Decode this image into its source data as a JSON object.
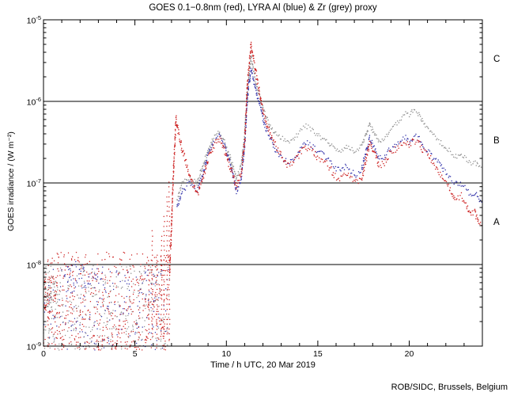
{
  "credit": "ROB/SIDC, Brussels, Belgium",
  "chart_data": {
    "type": "scatter",
    "title": "GOES 0.1−0.8nm (red), LYRA Al (blue) & Zr (grey) proxy",
    "xlabel": "Time / h UTC, 20 Mar 2019",
    "ylabel": "GOES irradiance / (W m⁻²)",
    "x_range_hours": [
      0,
      24
    ],
    "y_log10_range": [
      -9,
      -5
    ],
    "x_ticks": [
      0,
      5,
      10,
      15,
      20
    ],
    "y_tick_exponents": [
      -5,
      -6,
      -7,
      -8,
      -9
    ],
    "threshold_lines_log10": [
      -6,
      -7,
      -8
    ],
    "class_bands": [
      {
        "label": "C",
        "log10_center": -5.5
      },
      {
        "label": "B",
        "log10_center": -6.5
      },
      {
        "label": "A",
        "log10_center": -7.5
      }
    ],
    "colors": {
      "red": "#cc2020",
      "blue": "#3333aa",
      "grey": "#8f8f8f",
      "axis": "#000000",
      "background": "#ffffff"
    },
    "series": [
      {
        "name": "GOES 0.1-0.8nm",
        "color_key": "red",
        "jitter_log10": 0.045,
        "keypoints": [
          [
            6.9,
            -8.1
          ],
          [
            7.0,
            -7.55
          ],
          [
            7.1,
            -6.9
          ],
          [
            7.25,
            -6.2
          ],
          [
            7.35,
            -6.35
          ],
          [
            7.6,
            -6.6
          ],
          [
            8.0,
            -6.9
          ],
          [
            8.4,
            -7.15
          ],
          [
            8.7,
            -6.95
          ],
          [
            9.0,
            -6.7
          ],
          [
            9.3,
            -6.55
          ],
          [
            9.6,
            -6.45
          ],
          [
            9.9,
            -6.6
          ],
          [
            10.2,
            -6.8
          ],
          [
            10.55,
            -7.05
          ],
          [
            10.8,
            -6.9
          ],
          [
            11.0,
            -6.5
          ],
          [
            11.15,
            -5.8
          ],
          [
            11.35,
            -5.3
          ],
          [
            11.5,
            -5.5
          ],
          [
            11.7,
            -5.75
          ],
          [
            11.9,
            -6.0
          ],
          [
            12.1,
            -6.2
          ],
          [
            12.4,
            -6.4
          ],
          [
            12.7,
            -6.55
          ],
          [
            13.0,
            -6.65
          ],
          [
            13.4,
            -6.8
          ],
          [
            13.7,
            -6.75
          ],
          [
            14.0,
            -6.65
          ],
          [
            14.35,
            -6.55
          ],
          [
            14.7,
            -6.6
          ],
          [
            15.0,
            -6.7
          ],
          [
            15.3,
            -6.72
          ],
          [
            15.6,
            -6.8
          ],
          [
            15.9,
            -6.9
          ],
          [
            16.2,
            -6.95
          ],
          [
            16.5,
            -6.9
          ],
          [
            16.8,
            -6.92
          ],
          [
            17.1,
            -7.0
          ],
          [
            17.4,
            -6.95
          ],
          [
            17.65,
            -6.7
          ],
          [
            17.85,
            -6.5
          ],
          [
            18.05,
            -6.6
          ],
          [
            18.35,
            -6.8
          ],
          [
            18.65,
            -6.75
          ],
          [
            18.9,
            -6.65
          ],
          [
            19.2,
            -6.6
          ],
          [
            19.5,
            -6.55
          ],
          [
            19.8,
            -6.5
          ],
          [
            20.0,
            -6.55
          ],
          [
            20.25,
            -6.48
          ],
          [
            20.5,
            -6.5
          ],
          [
            20.75,
            -6.6
          ],
          [
            21.0,
            -6.65
          ],
          [
            21.3,
            -6.75
          ],
          [
            21.6,
            -6.85
          ],
          [
            21.9,
            -6.95
          ],
          [
            22.2,
            -7.05
          ],
          [
            22.5,
            -7.2
          ],
          [
            22.8,
            -7.15
          ],
          [
            23.1,
            -7.25
          ],
          [
            23.4,
            -7.4
          ],
          [
            23.6,
            -7.35
          ],
          [
            23.8,
            -7.5
          ],
          [
            24.0,
            -7.55
          ]
        ]
      },
      {
        "name": "LYRA Al proxy",
        "color_key": "blue",
        "jitter_log10": 0.035,
        "keypoints": [
          [
            7.3,
            -7.3
          ],
          [
            7.6,
            -7.1
          ],
          [
            8.0,
            -7.0
          ],
          [
            8.4,
            -7.1
          ],
          [
            8.7,
            -6.9
          ],
          [
            9.0,
            -6.65
          ],
          [
            9.3,
            -6.5
          ],
          [
            9.6,
            -6.42
          ],
          [
            9.9,
            -6.55
          ],
          [
            10.2,
            -6.75
          ],
          [
            10.55,
            -7.1
          ],
          [
            10.8,
            -6.95
          ],
          [
            11.0,
            -6.55
          ],
          [
            11.15,
            -5.95
          ],
          [
            11.35,
            -5.6
          ],
          [
            11.5,
            -5.75
          ],
          [
            11.7,
            -5.95
          ],
          [
            11.9,
            -6.1
          ],
          [
            12.1,
            -6.3
          ],
          [
            12.4,
            -6.45
          ],
          [
            12.7,
            -6.6
          ],
          [
            13.0,
            -6.68
          ],
          [
            13.4,
            -6.75
          ],
          [
            13.7,
            -6.7
          ],
          [
            14.0,
            -6.6
          ],
          [
            14.35,
            -6.5
          ],
          [
            14.7,
            -6.55
          ],
          [
            15.0,
            -6.62
          ],
          [
            15.3,
            -6.65
          ],
          [
            15.6,
            -6.72
          ],
          [
            15.9,
            -6.8
          ],
          [
            16.2,
            -6.85
          ],
          [
            16.5,
            -6.8
          ],
          [
            16.8,
            -6.85
          ],
          [
            17.1,
            -6.9
          ],
          [
            17.4,
            -6.85
          ],
          [
            17.65,
            -6.6
          ],
          [
            17.85,
            -6.45
          ],
          [
            18.05,
            -6.55
          ],
          [
            18.35,
            -6.7
          ],
          [
            18.65,
            -6.68
          ],
          [
            18.9,
            -6.6
          ],
          [
            19.2,
            -6.55
          ],
          [
            19.5,
            -6.5
          ],
          [
            19.8,
            -6.45
          ],
          [
            20.0,
            -6.5
          ],
          [
            20.25,
            -6.42
          ],
          [
            20.5,
            -6.45
          ],
          [
            20.75,
            -6.55
          ],
          [
            21.0,
            -6.6
          ],
          [
            21.3,
            -6.68
          ],
          [
            21.6,
            -6.75
          ],
          [
            21.9,
            -6.85
          ],
          [
            22.2,
            -6.92
          ],
          [
            22.5,
            -7.0
          ],
          [
            22.8,
            -7.0
          ],
          [
            23.1,
            -7.08
          ],
          [
            23.4,
            -7.15
          ],
          [
            23.6,
            -7.12
          ],
          [
            23.8,
            -7.2
          ],
          [
            24.0,
            -7.25
          ]
        ]
      },
      {
        "name": "LYRA Zr proxy",
        "color_key": "grey",
        "jitter_log10": 0.03,
        "keypoints": [
          [
            7.3,
            -7.2
          ],
          [
            7.6,
            -7.0
          ],
          [
            8.0,
            -6.95
          ],
          [
            8.4,
            -7.0
          ],
          [
            8.7,
            -6.8
          ],
          [
            9.0,
            -6.6
          ],
          [
            9.3,
            -6.45
          ],
          [
            9.6,
            -6.38
          ],
          [
            9.9,
            -6.5
          ],
          [
            10.2,
            -6.68
          ],
          [
            10.55,
            -6.95
          ],
          [
            10.8,
            -6.8
          ],
          [
            11.0,
            -6.4
          ],
          [
            11.15,
            -5.85
          ],
          [
            11.35,
            -5.45
          ],
          [
            11.5,
            -5.65
          ],
          [
            11.7,
            -5.85
          ],
          [
            11.9,
            -6.0
          ],
          [
            12.1,
            -6.15
          ],
          [
            12.4,
            -6.3
          ],
          [
            12.7,
            -6.4
          ],
          [
            13.0,
            -6.45
          ],
          [
            13.4,
            -6.5
          ],
          [
            13.7,
            -6.45
          ],
          [
            14.0,
            -6.38
          ],
          [
            14.35,
            -6.3
          ],
          [
            14.7,
            -6.35
          ],
          [
            15.0,
            -6.42
          ],
          [
            15.3,
            -6.45
          ],
          [
            15.6,
            -6.5
          ],
          [
            15.9,
            -6.58
          ],
          [
            16.2,
            -6.62
          ],
          [
            16.5,
            -6.55
          ],
          [
            16.8,
            -6.58
          ],
          [
            17.1,
            -6.62
          ],
          [
            17.4,
            -6.55
          ],
          [
            17.65,
            -6.4
          ],
          [
            17.85,
            -6.28
          ],
          [
            18.05,
            -6.38
          ],
          [
            18.35,
            -6.5
          ],
          [
            18.65,
            -6.45
          ],
          [
            18.9,
            -6.38
          ],
          [
            19.2,
            -6.3
          ],
          [
            19.5,
            -6.22
          ],
          [
            19.8,
            -6.15
          ],
          [
            20.0,
            -6.18
          ],
          [
            20.25,
            -6.1
          ],
          [
            20.5,
            -6.15
          ],
          [
            20.75,
            -6.25
          ],
          [
            21.0,
            -6.32
          ],
          [
            21.3,
            -6.4
          ],
          [
            21.6,
            -6.48
          ],
          [
            21.9,
            -6.55
          ],
          [
            22.2,
            -6.6
          ],
          [
            22.5,
            -6.68
          ],
          [
            22.8,
            -6.65
          ],
          [
            23.1,
            -6.7
          ],
          [
            23.4,
            -6.78
          ],
          [
            23.6,
            -6.75
          ],
          [
            23.8,
            -6.8
          ],
          [
            24.0,
            -6.82
          ]
        ]
      }
    ],
    "quiet_background_scatter": {
      "clusters": [
        {
          "color_key": "red",
          "count": 620,
          "t_range": [
            0,
            6.9
          ],
          "log10_range": [
            -9.05,
            -7.85
          ],
          "bias": 1.25
        },
        {
          "color_key": "blue",
          "count": 200,
          "t_range": [
            0,
            6.9
          ],
          "log10_range": [
            -9.05,
            -8.05
          ],
          "bias": 1.0
        },
        {
          "color_key": "grey",
          "count": 330,
          "t_range": [
            0,
            6.9
          ],
          "log10_range": [
            -9.05,
            -8.0
          ],
          "bias": 1.0
        },
        {
          "color_key": "red",
          "count": 55,
          "t_range": [
            0.05,
            0.8
          ],
          "log10_range": [
            -8.6,
            -8.15
          ],
          "bias": 1.0
        },
        {
          "color_key": "grey",
          "count": 45,
          "t_range": [
            0.05,
            0.8
          ],
          "log10_range": [
            -8.55,
            -8.2
          ],
          "bias": 1.0
        },
        {
          "color_key": "blue",
          "count": 40,
          "t_range": [
            1.3,
            3.3
          ],
          "log10_range": [
            -8.35,
            -7.95
          ],
          "bias": 1.0
        }
      ]
    },
    "red_spikes": [
      [
        5.75,
        -7.9
      ],
      [
        5.95,
        -7.55
      ],
      [
        6.2,
        -7.85
      ],
      [
        6.45,
        -7.6
      ],
      [
        6.6,
        -7.35
      ],
      [
        6.75,
        -7.15
      ],
      [
        6.88,
        -6.98
      ]
    ]
  }
}
